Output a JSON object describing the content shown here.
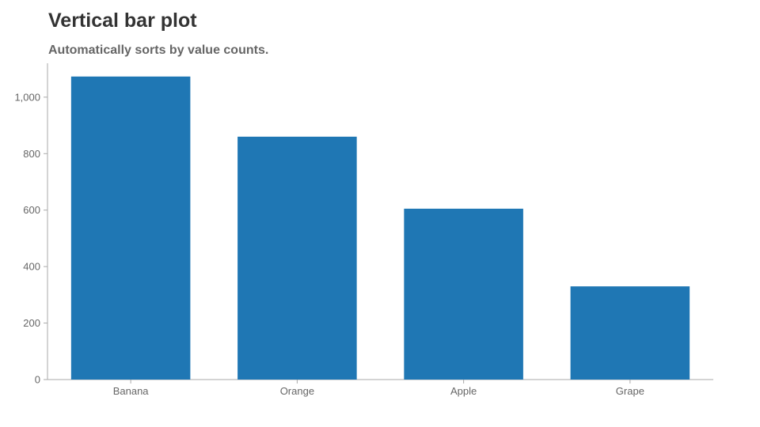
{
  "chart_data": {
    "type": "bar",
    "title": "Vertical bar plot",
    "subtitle": "Automatically sorts by value counts.",
    "xlabel": "",
    "ylabel": "",
    "categories": [
      "Banana",
      "Orange",
      "Apple",
      "Grape"
    ],
    "values": [
      1073,
      860,
      605,
      330
    ],
    "ylim": [
      0,
      1120
    ],
    "yticks": [
      0,
      200,
      400,
      600,
      800,
      1000
    ],
    "ytick_labels": [
      "0",
      "200",
      "400",
      "600",
      "800",
      "1,000"
    ],
    "grid": false,
    "legend": "none",
    "bar_color": "#1f77b4",
    "axis_color": "#aaaaaa",
    "text_color": "#666666"
  }
}
